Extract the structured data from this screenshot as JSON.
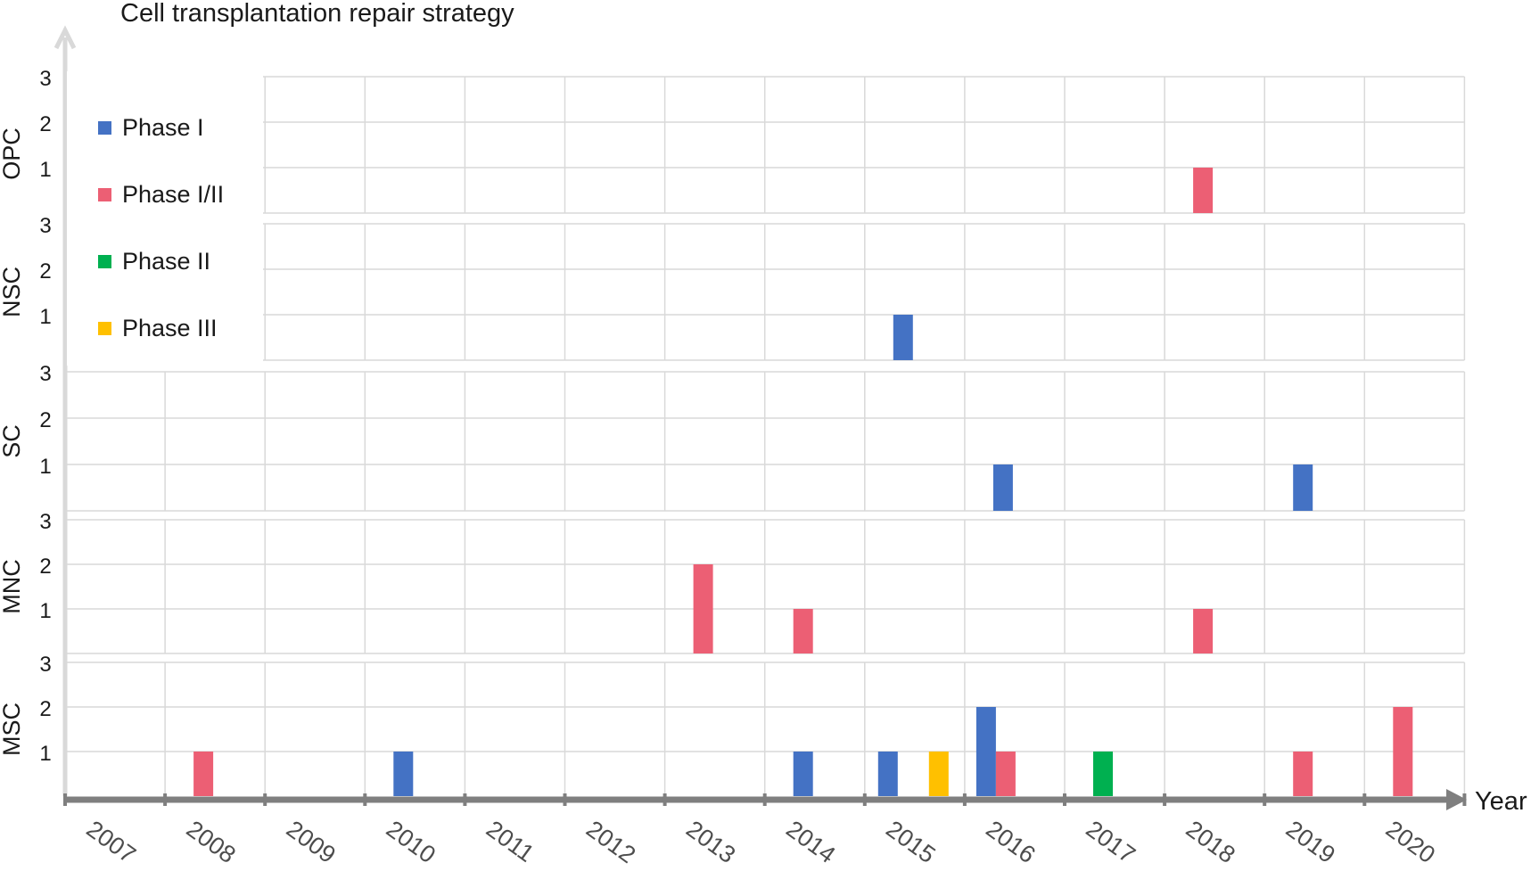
{
  "chart_data": {
    "type": "bar",
    "title": "Cell transplantation repair strategy",
    "xlabel": "Year",
    "ylabel": "",
    "years": [
      "2007",
      "2008",
      "2009",
      "2010",
      "2011",
      "2012",
      "2013",
      "2014",
      "2015",
      "2016",
      "2017",
      "2018",
      "2019",
      "2020"
    ],
    "ylim": [
      0,
      3
    ],
    "yticks": [
      1,
      2,
      3
    ],
    "grid": true,
    "legend_position": "upper-left",
    "phases": [
      {
        "name": "Phase I",
        "color": "#4472c4"
      },
      {
        "name": "Phase I/II",
        "color": "#ec5f74"
      },
      {
        "name": "Phase II",
        "color": "#00b050"
      },
      {
        "name": "Phase III",
        "color": "#ffc000"
      }
    ],
    "panels": [
      {
        "label": "OPC",
        "bars": [
          {
            "year": "2018",
            "phase": "Phase I/II",
            "value": 1
          }
        ]
      },
      {
        "label": "NSC",
        "bars": [
          {
            "year": "2015",
            "phase": "Phase I",
            "value": 1
          }
        ]
      },
      {
        "label": "SC",
        "bars": [
          {
            "year": "2016",
            "phase": "Phase I",
            "value": 1
          },
          {
            "year": "2019",
            "phase": "Phase I",
            "value": 1
          }
        ]
      },
      {
        "label": "MNC",
        "bars": [
          {
            "year": "2013",
            "phase": "Phase I/II",
            "value": 2
          },
          {
            "year": "2014",
            "phase": "Phase I/II",
            "value": 1
          },
          {
            "year": "2018",
            "phase": "Phase I/II",
            "value": 1
          }
        ]
      },
      {
        "label": "MSC",
        "bars": [
          {
            "year": "2008",
            "phase": "Phase I/II",
            "value": 1
          },
          {
            "year": "2010",
            "phase": "Phase I",
            "value": 1
          },
          {
            "year": "2014",
            "phase": "Phase I",
            "value": 1
          },
          {
            "year": "2015",
            "phase": "Phase I",
            "value": 1
          },
          {
            "year": "2015",
            "phase": "Phase III",
            "value": 1
          },
          {
            "year": "2016",
            "phase": "Phase I",
            "value": 2
          },
          {
            "year": "2016",
            "phase": "Phase I/II",
            "value": 1
          },
          {
            "year": "2017",
            "phase": "Phase II",
            "value": 1
          },
          {
            "year": "2019",
            "phase": "Phase I/II",
            "value": 1
          },
          {
            "year": "2020",
            "phase": "Phase I/II",
            "value": 2
          }
        ]
      }
    ]
  }
}
